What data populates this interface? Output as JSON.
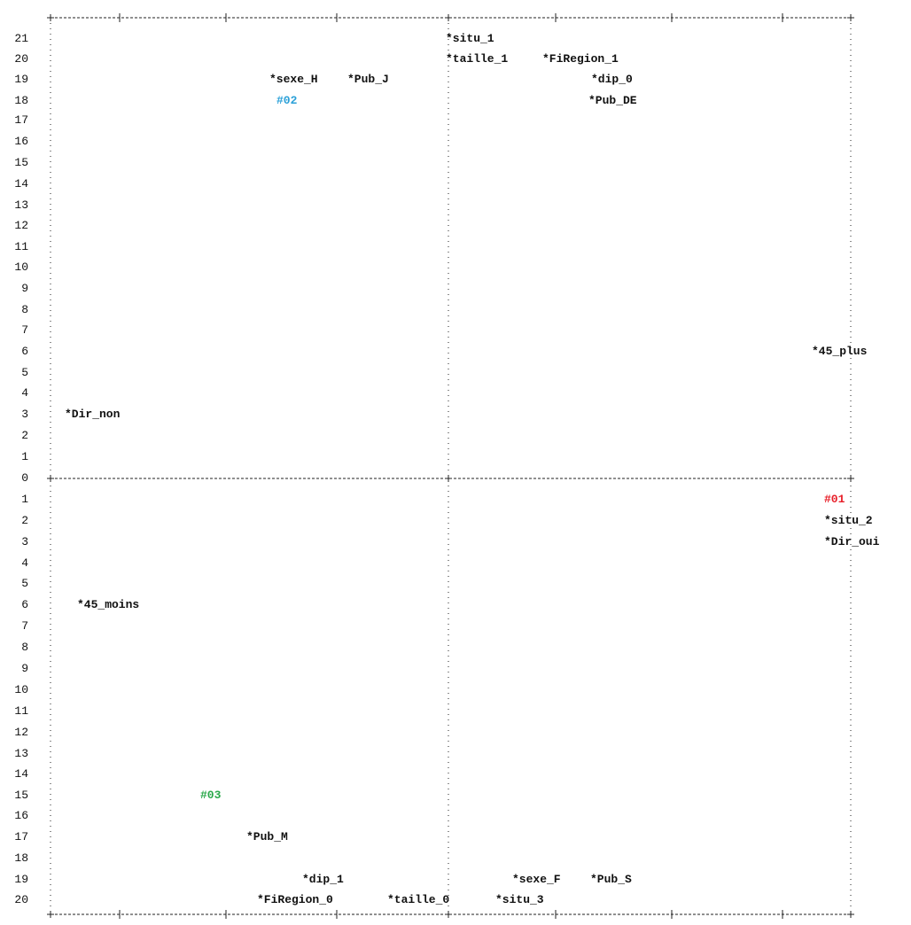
{
  "row_labels_top": [
    "21",
    "20",
    "19",
    "18",
    "17",
    "16",
    "15",
    "14",
    "13",
    "12",
    "11",
    "10",
    "9",
    "8",
    "7",
    "6",
    "5",
    "4",
    "3",
    "2",
    "1"
  ],
  "row_label_zero": "0",
  "row_labels_bottom": [
    "1",
    "2",
    "3",
    "4",
    "5",
    "6",
    "7",
    "8",
    "9",
    "10",
    "11",
    "12",
    "13",
    "14",
    "15",
    "16",
    "17",
    "18",
    "19",
    "20"
  ],
  "points": [
    {
      "id": "situ_1",
      "label": "situ_1",
      "marker": "*",
      "row": "21",
      "quadrant": "top"
    },
    {
      "id": "taille_1",
      "label": "taille_1",
      "marker": "*",
      "row": "20",
      "quadrant": "top"
    },
    {
      "id": "fi_region_1",
      "label": "FiRegion_1",
      "marker": "*",
      "row": "20",
      "quadrant": "top"
    },
    {
      "id": "sexe_h",
      "label": "sexe_H",
      "marker": "*",
      "row": "19",
      "quadrant": "top"
    },
    {
      "id": "pub_j",
      "label": "Pub_J",
      "marker": "*",
      "row": "19",
      "quadrant": "top"
    },
    {
      "id": "dip_0",
      "label": "dip_0",
      "marker": "*",
      "row": "19",
      "quadrant": "top"
    },
    {
      "id": "pub_de",
      "label": "Pub_DE",
      "marker": "*",
      "row": "18",
      "quadrant": "top"
    },
    {
      "id": "plus_45",
      "label": "45_plus",
      "marker": "*",
      "row": "6",
      "quadrant": "top"
    },
    {
      "id": "dir_non",
      "label": "Dir_non",
      "marker": "*",
      "row": "3",
      "quadrant": "top"
    },
    {
      "id": "situ_2",
      "label": "situ_2",
      "marker": "*",
      "row": "2",
      "quadrant": "bottom"
    },
    {
      "id": "dir_oui",
      "label": "Dir_oui",
      "marker": "*",
      "row": "3",
      "quadrant": "bottom"
    },
    {
      "id": "moins_45",
      "label": "45_moins",
      "marker": "*",
      "row": "6",
      "quadrant": "bottom"
    },
    {
      "id": "pub_m",
      "label": "Pub_M",
      "marker": "*",
      "row": "17",
      "quadrant": "bottom"
    },
    {
      "id": "dip_1",
      "label": "dip_1",
      "marker": "*",
      "row": "19",
      "quadrant": "bottom"
    },
    {
      "id": "sexe_f",
      "label": "sexe_F",
      "marker": "*",
      "row": "19",
      "quadrant": "bottom"
    },
    {
      "id": "pub_s",
      "label": "Pub_S",
      "marker": "*",
      "row": "19",
      "quadrant": "bottom"
    },
    {
      "id": "fi_region_0",
      "label": "FiRegion_0",
      "marker": "*",
      "row": "20",
      "quadrant": "bottom"
    },
    {
      "id": "taille_0",
      "label": "taille_0",
      "marker": "*",
      "row": "20",
      "quadrant": "bottom"
    },
    {
      "id": "situ_3",
      "label": "situ_3",
      "marker": "*",
      "row": "20",
      "quadrant": "bottom"
    }
  ],
  "clusters": [
    {
      "id": "c01",
      "label": "#01",
      "color": "#e8202a"
    },
    {
      "id": "c02",
      "label": "#02",
      "color": "#2aa0d8"
    },
    {
      "id": "c03",
      "label": "#03",
      "color": "#2aa84a"
    }
  ],
  "colors": {
    "ink": "#111111",
    "axis": "#222222"
  }
}
